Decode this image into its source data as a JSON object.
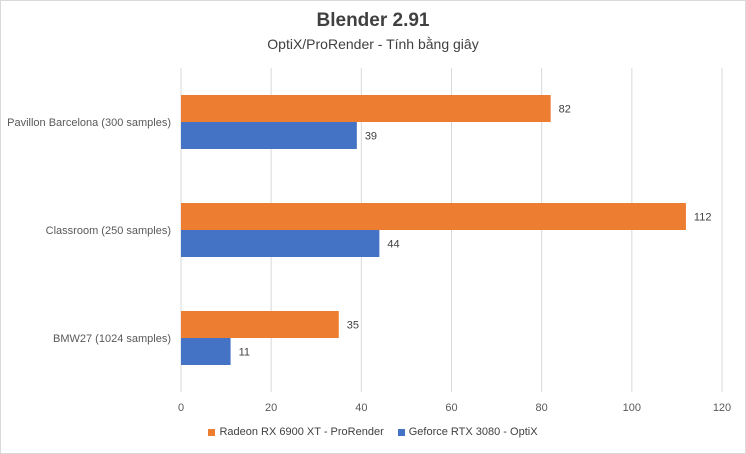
{
  "chart_data": {
    "type": "bar",
    "orientation": "horizontal",
    "title": "Blender 2.91",
    "subtitle": "OptiX/ProRender  - Tính bằng giây",
    "categories": [
      "Pavillon Barcelona (300 samples)",
      "Classroom (250 samples)",
      "BMW27 (1024 samples)"
    ],
    "series": [
      {
        "name": "Radeon RX 6900 XT - ProRender",
        "values": [
          82,
          112,
          35
        ],
        "color": "#ed7d31"
      },
      {
        "name": "Geforce RTX 3080 - OptiX",
        "values": [
          39,
          44,
          11
        ],
        "color": "#4472c4"
      }
    ],
    "xlim": [
      0,
      120
    ],
    "xticks": [
      0,
      20,
      40,
      60,
      80,
      100,
      120
    ],
    "grid": true,
    "legend": "bottom"
  }
}
